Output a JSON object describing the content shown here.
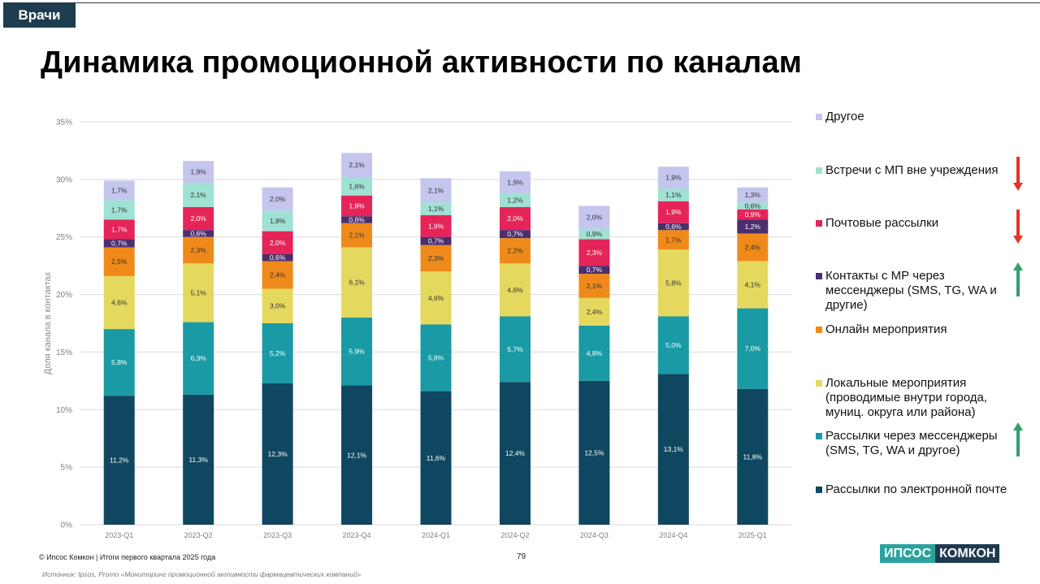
{
  "header": {
    "tag": "Врачи",
    "title": "Динамика промоционной активности по каналам"
  },
  "colors": {
    "email": "#0f4760",
    "messenger_mail": "#1a9aa4",
    "local": "#e5d85f",
    "online": "#ef8a1a",
    "mr_messenger": "#4a2e6e",
    "postal": "#e5245a",
    "meetings": "#9fe1d3",
    "other": "#c5c6ee",
    "arrow_down": "#e63324",
    "arrow_up": "#2ca36c"
  },
  "chart_data": {
    "type": "bar",
    "stacked": true,
    "ylabel": "Доля канала в контактах",
    "ylim": [
      0,
      35
    ],
    "yticks": [
      "0%",
      "5%",
      "10%",
      "15%",
      "20%",
      "25%",
      "30%",
      "35%"
    ],
    "grid": true,
    "legend_position": "right",
    "categories": [
      "2023-Q1",
      "2023-Q2",
      "2023-Q3",
      "2023-Q4",
      "2024-Q1",
      "2024-Q2",
      "2024-Q3",
      "2024-Q4",
      "2025-Q1"
    ],
    "series": [
      {
        "name": "Рассылки по электронной почте",
        "color_key": "email",
        "values": [
          11.2,
          11.3,
          12.3,
          12.1,
          11.6,
          12.4,
          12.5,
          13.1,
          11.8
        ],
        "labels": [
          "11,2%",
          "11,3%",
          "12,3%",
          "12,1%",
          "11,6%",
          "12,4%",
          "12,5%",
          "13,1%",
          "11,8%"
        ]
      },
      {
        "name": "Рассылки через мессенджеры (SMS, TG, WA и другое)",
        "color_key": "messenger_mail",
        "values": [
          5.8,
          6.3,
          5.2,
          5.9,
          5.8,
          5.7,
          4.8,
          5.0,
          7.0
        ],
        "labels": [
          "5,8%",
          "6,3%",
          "5,2%",
          "5,9%",
          "5,8%",
          "5,7%",
          "4,8%",
          "5,0%",
          "7,0%"
        ]
      },
      {
        "name": "Локальные мероприятия (проводимые внутри города, муниц. округа или района)",
        "color_key": "local",
        "values": [
          4.6,
          5.1,
          3.0,
          6.1,
          4.6,
          4.6,
          2.4,
          5.8,
          4.1
        ],
        "labels": [
          "4,6%",
          "5,1%",
          "3,0%",
          "6,1%",
          "4,6%",
          "4,6%",
          "2,4%",
          "5,8%",
          "4,1%"
        ]
      },
      {
        "name": "Онлайн мероприятия",
        "color_key": "online",
        "values": [
          2.5,
          2.3,
          2.4,
          2.1,
          2.3,
          2.2,
          2.1,
          1.7,
          2.4
        ],
        "labels": [
          "2,5%",
          "2,3%",
          "2,4%",
          "2,1%",
          "2,3%",
          "2,2%",
          "2,1%",
          "1,7%",
          "2,4%"
        ]
      },
      {
        "name": "Контакты с МР через мессенджеры (SMS, TG, WA и другие)",
        "color_key": "mr_messenger",
        "values": [
          0.7,
          0.6,
          0.6,
          0.6,
          0.7,
          0.7,
          0.7,
          0.6,
          1.2
        ],
        "labels": [
          "0,7%",
          "0,6%",
          "0,6%",
          "0,6%",
          "0,7%",
          "0,7%",
          "0,7%",
          "0,6%",
          "1,2%"
        ]
      },
      {
        "name": "Почтовые рассылки",
        "color_key": "postal",
        "values": [
          1.7,
          2.0,
          2.0,
          1.8,
          1.9,
          2.0,
          2.3,
          1.9,
          0.9
        ],
        "labels": [
          "1,7%",
          "2,0%",
          "2,0%",
          "1,8%",
          "1,9%",
          "2,0%",
          "2,3%",
          "1,9%",
          "0,9%"
        ]
      },
      {
        "name": "Встречи с МП вне учреждения",
        "color_key": "meetings",
        "values": [
          1.7,
          2.1,
          1.8,
          1.6,
          1.1,
          1.2,
          0.9,
          1.1,
          0.6
        ],
        "labels": [
          "1,7%",
          "2,1%",
          "1,8%",
          "1,6%",
          "1,1%",
          "1,2%",
          "0,9%",
          "1,1%",
          "0,6%"
        ]
      },
      {
        "name": "Другое",
        "color_key": "other",
        "values": [
          1.7,
          1.9,
          2.0,
          2.1,
          2.1,
          1.9,
          2.0,
          1.9,
          1.3
        ],
        "labels": [
          "1,7%",
          "1,9%",
          "2,0%",
          "2,1%",
          "2,1%",
          "1,9%",
          "2,0%",
          "1,9%",
          "1,3%"
        ]
      }
    ]
  },
  "legend": [
    {
      "label": "Другое",
      "color_key": "other",
      "trend": ""
    },
    {
      "label": "Встречи с МП вне учреждения",
      "color_key": "meetings",
      "trend": "down"
    },
    {
      "label": "Почтовые рассылки",
      "color_key": "postal",
      "trend": "down"
    },
    {
      "label": "Контакты с МР через мессенджеры (SMS, TG, WA и другие)",
      "color_key": "mr_messenger",
      "trend": "up"
    },
    {
      "label": "Онлайн мероприятия",
      "color_key": "online",
      "trend": ""
    },
    {
      "label": "Локальные мероприятия (проводимые внутри города, муниц. округа или района)",
      "color_key": "local",
      "trend": ""
    },
    {
      "label": "Рассылки через мессенджеры (SMS, TG, WA и другое)",
      "color_key": "messenger_mail",
      "trend": "up"
    },
    {
      "label": "Рассылки по электронной почте",
      "color_key": "email",
      "trend": ""
    }
  ],
  "footer": {
    "copyright": "© Ипсос Комкон | Итоги первого квартала 2025 года",
    "page": "79",
    "source": "Источник: Ipsos, Promo «Мониторинг промоционной активности фармацевтических компаний»",
    "logo_left": "ИПСОС",
    "logo_right": "КОМКОН"
  }
}
